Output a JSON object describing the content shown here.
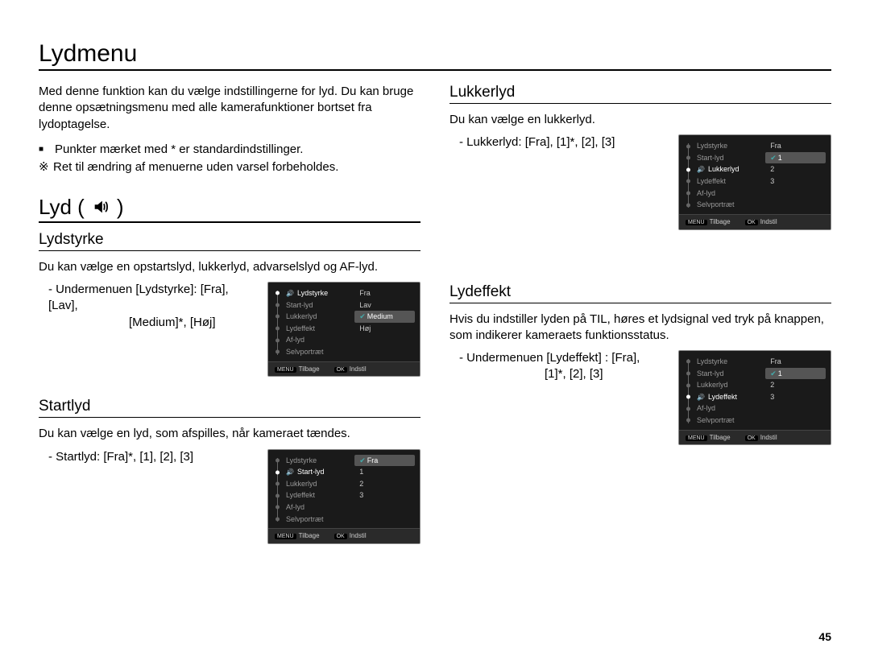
{
  "page_title": "Lydmenu",
  "page_number": "45",
  "intro": "Med denne funktion kan du vælge indstillingerne for lyd. Du kan bruge denne opsætningsmenu med alle kamerafunktioner bortset fra lydoptagelse.",
  "notes": {
    "square": "Punkter mærket med * er standardindstillinger.",
    "ref": "Ret til ændring af menuerne uden varsel forbeholdes."
  },
  "lyd_section_title": "Lyd (",
  "lyd_section_title_close": ")",
  "lydstyrke": {
    "title": "Lydstyrke",
    "desc": "Du kan vælge en opstartslyd, lukkerlyd, advarselslyd og AF-lyd.",
    "sub_line1": "- Undermenuen [Lydstyrke]: [Fra], [Lav],",
    "sub_line2": "[Medium]*, [Høj]"
  },
  "startlyd": {
    "title": "Startlyd",
    "desc": "Du kan vælge en lyd, som afspilles, når kameraet tændes.",
    "sub": "- Startlyd: [Fra]*, [1], [2], [3]"
  },
  "lukkerlyd": {
    "title": "Lukkerlyd",
    "desc": "Du kan vælge en lukkerlyd.",
    "sub": "- Lukkerlyd: [Fra], [1]*, [2], [3]"
  },
  "lydeffekt": {
    "title": "Lydeffekt",
    "desc": "Hvis du indstiller lyden på TIL, høres et lydsignal ved tryk på knappen, som indikerer kameraets funktionsstatus.",
    "sub_line1": "- Undermenuen [Lydeffekt] : [Fra],",
    "sub_line2": "[1]*, [2], [3]"
  },
  "menu_labels": {
    "items": [
      "Lydstyrke",
      "Start-lyd",
      "Lukkerlyd",
      "Lydeffekt",
      "Af-lyd",
      "Selvportræt"
    ],
    "footer_back": "Tilbage",
    "footer_set": "Indstil",
    "key_menu": "MENU",
    "key_ok": "OK"
  },
  "shot_lydstyrke_right": [
    "Fra",
    "Lav",
    "Medium",
    "Høj"
  ],
  "shot_lydstyrke_right_sel": 2,
  "shot_lydstyrke_left_sel": 0,
  "shot_lydstyrke_left_val": "Medium",
  "shot_startlyd_right": [
    "Fra",
    "1",
    "2",
    "3"
  ],
  "shot_startlyd_right_sel": 0,
  "shot_startlyd_left_sel": 1,
  "shot_lukkerlyd_right": [
    "Fra",
    "1",
    "2",
    "3"
  ],
  "shot_lukkerlyd_right_sel": 1,
  "shot_lukkerlyd_left_sel": 2,
  "shot_lydeffekt_right": [
    "Fra",
    "1",
    "2",
    "3"
  ],
  "shot_lydeffekt_right_sel": 1,
  "shot_lydeffekt_left_sel": 3,
  "colors": {
    "text": "#000000",
    "bg": "#ffffff",
    "shot_bg": "#1a1a1a",
    "shot_sel_bg": "#555555",
    "shot_text": "#bbbbbb"
  }
}
